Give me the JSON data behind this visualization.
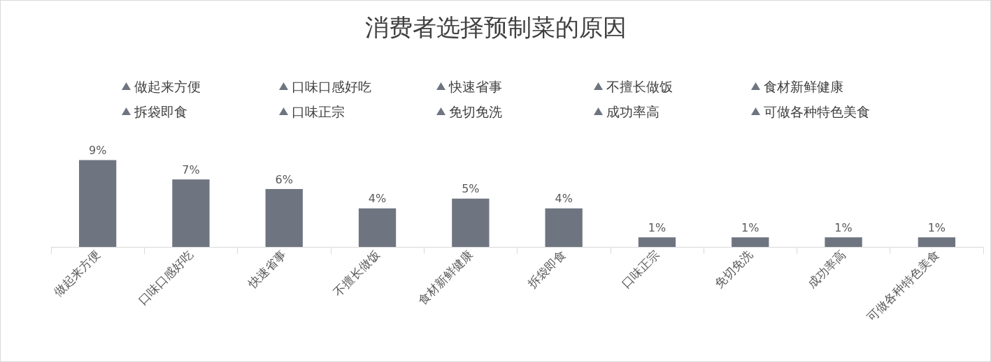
{
  "chart_data": {
    "type": "bar",
    "title": "消费者选择预制菜的原因",
    "categories": [
      "做起来方便",
      "口味口感好吃",
      "快速省事",
      "不擅长做饭",
      "食材新鲜健康",
      "拆袋即食",
      "口味正宗",
      "免切免洗",
      "成功率高",
      "可做各种特色美食"
    ],
    "series": [
      {
        "name": "做起来方便",
        "color": "#6f7580",
        "values": [
          9,
          null,
          null,
          null,
          null,
          null,
          null,
          null,
          null,
          null
        ],
        "value_labels": [
          "9%",
          null,
          null,
          null,
          null,
          null,
          null,
          null,
          null,
          null
        ]
      },
      {
        "name": "口味口感好吃",
        "color": "#6f7580",
        "values": [
          null,
          7,
          null,
          null,
          null,
          null,
          null,
          null,
          null,
          null
        ],
        "value_labels": [
          null,
          "7%",
          null,
          null,
          null,
          null,
          null,
          null,
          null,
          null
        ]
      },
      {
        "name": "快速省事",
        "color": "#6f7580",
        "values": [
          null,
          null,
          6,
          null,
          null,
          null,
          null,
          null,
          null,
          null
        ],
        "value_labels": [
          null,
          null,
          "6%",
          null,
          null,
          null,
          null,
          null,
          null,
          null
        ]
      },
      {
        "name": "不擅长做饭",
        "color": "#6f7580",
        "values": [
          null,
          null,
          null,
          4,
          null,
          null,
          null,
          null,
          null,
          null
        ],
        "value_labels": [
          null,
          null,
          null,
          "4%",
          null,
          null,
          null,
          null,
          null,
          null
        ]
      },
      {
        "name": "食材新鲜健康",
        "color": "#6f7580",
        "values": [
          null,
          null,
          null,
          null,
          5,
          null,
          null,
          null,
          null,
          null
        ],
        "value_labels": [
          null,
          null,
          null,
          null,
          "5%",
          null,
          null,
          null,
          null,
          null
        ]
      },
      {
        "name": "拆袋即食",
        "color": "#6f7580",
        "values": [
          null,
          null,
          null,
          null,
          null,
          4,
          null,
          null,
          null,
          null
        ],
        "value_labels": [
          null,
          null,
          null,
          null,
          null,
          "4%",
          null,
          null,
          null,
          null
        ]
      },
      {
        "name": "口味正宗",
        "color": "#6f7580",
        "values": [
          null,
          null,
          null,
          null,
          null,
          null,
          1,
          null,
          null,
          null
        ],
        "value_labels": [
          null,
          null,
          null,
          null,
          null,
          null,
          "1%",
          null,
          null,
          null
        ]
      },
      {
        "name": "免切免洗",
        "color": "#6f7580",
        "values": [
          null,
          null,
          null,
          null,
          null,
          null,
          null,
          1,
          null,
          null
        ],
        "value_labels": [
          null,
          null,
          null,
          null,
          null,
          null,
          null,
          "1%",
          null,
          null
        ]
      },
      {
        "name": "成功率高",
        "color": "#6f7580",
        "values": [
          null,
          null,
          null,
          null,
          null,
          null,
          null,
          null,
          1,
          null
        ],
        "value_labels": [
          null,
          null,
          null,
          null,
          null,
          null,
          null,
          null,
          "1%",
          null
        ]
      },
      {
        "name": "可做各种特色美食",
        "color": "#6f7580",
        "values": [
          null,
          null,
          null,
          null,
          null,
          null,
          null,
          null,
          null,
          1
        ],
        "value_labels": [
          null,
          null,
          null,
          null,
          null,
          null,
          null,
          null,
          null,
          "1%"
        ]
      }
    ],
    "legend": "top"
  }
}
